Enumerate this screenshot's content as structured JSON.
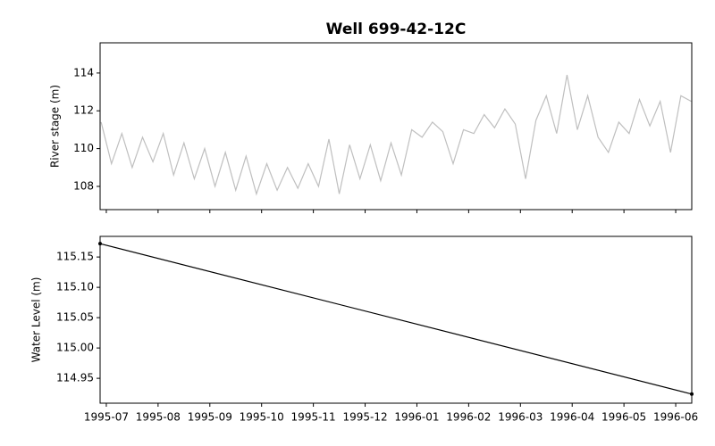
{
  "chart_data": [
    {
      "type": "line",
      "title": "Well 699-42-12C",
      "ylabel": "River stage (m)",
      "x": [
        -0.1,
        0.1,
        0.3,
        0.5,
        0.7,
        0.9,
        1.1,
        1.3,
        1.5,
        1.7,
        1.9,
        2.1,
        2.3,
        2.5,
        2.7,
        2.9,
        3.1,
        3.3,
        3.5,
        3.7,
        3.9,
        4.1,
        4.3,
        4.5,
        4.7,
        4.9,
        5.1,
        5.3,
        5.5,
        5.7,
        5.9,
        6.1,
        6.3,
        6.5,
        6.7,
        6.9,
        7.1,
        7.3,
        7.5,
        7.7,
        7.9,
        8.1,
        8.3,
        8.5,
        8.7,
        8.9,
        9.1,
        9.3,
        9.5,
        9.7,
        9.9,
        10.1,
        10.3,
        10.5,
        10.7,
        10.9,
        11.1,
        11.3
      ],
      "series": [
        {
          "color": "#bfbfbf",
          "values": [
            111.4,
            109.2,
            110.8,
            109.0,
            110.6,
            109.3,
            110.8,
            108.6,
            110.3,
            108.4,
            110.0,
            108.0,
            109.8,
            107.8,
            109.6,
            107.6,
            109.2,
            107.8,
            109.0,
            107.9,
            109.2,
            108.0,
            110.5,
            107.6,
            110.2,
            108.4,
            110.2,
            108.3,
            110.3,
            108.6,
            111.0,
            110.6,
            111.4,
            110.9,
            109.2,
            111.0,
            110.8,
            111.8,
            111.1,
            112.1,
            111.3,
            108.4,
            111.5,
            112.8,
            110.8,
            113.9,
            111.0,
            112.8,
            110.6,
            109.8,
            111.4,
            110.8,
            112.6,
            111.2,
            112.5,
            109.8,
            112.8,
            112.5
          ]
        }
      ],
      "xlim": [
        -0.12,
        11.31
      ],
      "xticks": [
        0,
        1,
        2,
        3,
        4,
        5,
        6,
        7,
        8,
        9,
        10,
        11
      ],
      "ylim": [
        106.77,
        115.6
      ],
      "yticks": [
        108,
        110,
        112,
        114
      ]
    },
    {
      "type": "line",
      "ylabel": "Water Level (m)",
      "x": [
        -0.12,
        11.31
      ],
      "series": [
        {
          "color": "#000000",
          "values": [
            115.172,
            114.924
          ]
        }
      ],
      "xlim": [
        -0.12,
        11.31
      ],
      "xticks": [
        {
          "value": 0,
          "label": "1995-07"
        },
        {
          "value": 1,
          "label": "1995-08"
        },
        {
          "value": 2,
          "label": "1995-09"
        },
        {
          "value": 3,
          "label": "1995-10"
        },
        {
          "value": 4,
          "label": "1995-11"
        },
        {
          "value": 5,
          "label": "1995-12"
        },
        {
          "value": 6,
          "label": "1996-01"
        },
        {
          "value": 7,
          "label": "1996-02"
        },
        {
          "value": 8,
          "label": "1996-03"
        },
        {
          "value": 9,
          "label": "1996-04"
        },
        {
          "value": 10,
          "label": "1996-05"
        },
        {
          "value": 11,
          "label": "1996-06"
        }
      ],
      "ylim": [
        114.909,
        115.184
      ],
      "yticks": [
        {
          "value": 114.95,
          "label": "114.95"
        },
        {
          "value": 115.0,
          "label": "115.00"
        },
        {
          "value": 115.05,
          "label": "115.05"
        },
        {
          "value": 115.1,
          "label": "115.10"
        },
        {
          "value": 115.15,
          "label": "115.15"
        }
      ]
    }
  ]
}
